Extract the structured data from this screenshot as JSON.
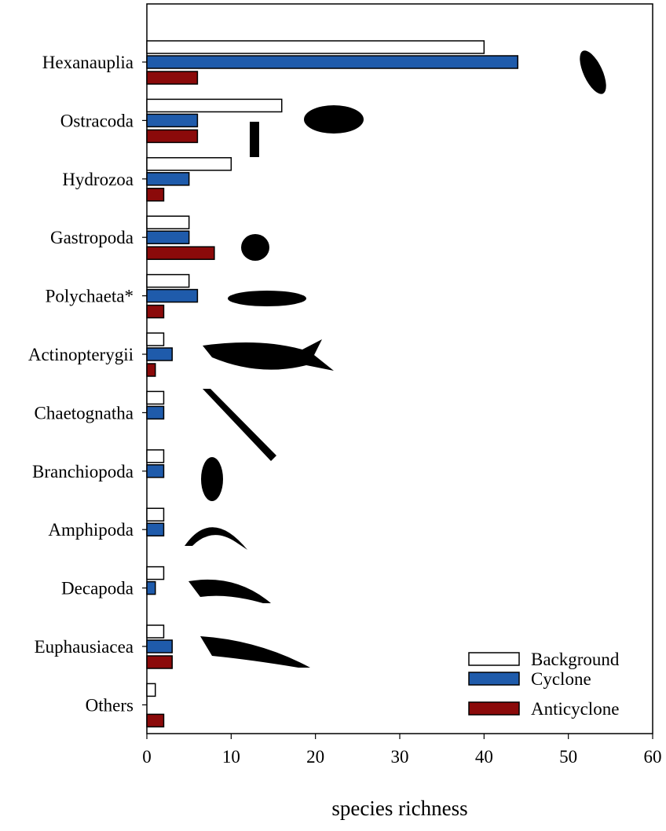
{
  "chart_data": {
    "type": "bar",
    "orientation": "horizontal",
    "title": "",
    "xlabel": "species richness",
    "ylabel": "",
    "xlim": [
      0,
      60
    ],
    "xticks": [
      0,
      10,
      20,
      30,
      40,
      50,
      60
    ],
    "grid": false,
    "legend_position": "bottom-right",
    "categories": [
      "Hexanauplia",
      "Ostracoda",
      "Hydrozoa",
      "Gastropoda",
      "Polychaeta*",
      "Actinopterygii",
      "Chaetognatha",
      "Branchiopoda",
      "Amphipoda",
      "Decapoda",
      "Euphausiacea",
      "Others"
    ],
    "series": [
      {
        "name": "Background",
        "color": "#ffffff",
        "values": [
          40,
          16,
          10,
          5,
          5,
          2,
          2,
          2,
          2,
          2,
          2,
          1
        ]
      },
      {
        "name": "Cyclone",
        "color": "#1f5bab",
        "values": [
          44,
          6,
          5,
          5,
          6,
          3,
          2,
          2,
          2,
          1,
          3,
          0
        ]
      },
      {
        "name": "Anticyclone",
        "color": "#8b0a0a",
        "values": [
          6,
          6,
          2,
          8,
          2,
          1,
          0,
          0,
          0,
          0,
          3,
          2
        ]
      }
    ]
  }
}
